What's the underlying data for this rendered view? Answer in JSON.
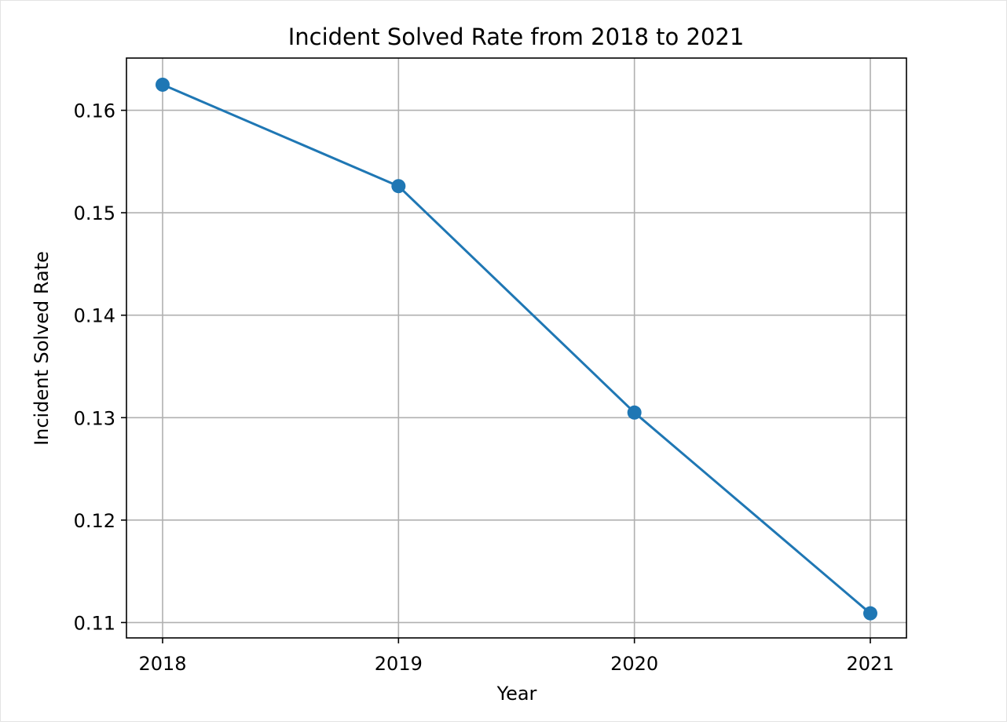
{
  "chart_data": {
    "type": "line",
    "title": "Incident Solved Rate from 2018 to 2021",
    "xlabel": "Year",
    "ylabel": "Incident Solved Rate",
    "categories": [
      "2018",
      "2019",
      "2020",
      "2021"
    ],
    "series": [
      {
        "values": [
          0.1625,
          0.1526,
          0.1305,
          0.1109
        ],
        "color": "#1f77b4",
        "marker": "circle"
      }
    ],
    "ylim": [
      0.1085,
      0.1651
    ],
    "yticks": [
      0.11,
      0.12,
      0.13,
      0.14,
      0.15,
      0.16
    ],
    "ytick_labels": [
      "0.11",
      "0.12",
      "0.13",
      "0.14",
      "0.15",
      "0.16"
    ],
    "grid": true,
    "legend": "none",
    "colors": {
      "grid": "#b0b0b0",
      "axes": "#000000",
      "background": "#ffffff"
    }
  }
}
